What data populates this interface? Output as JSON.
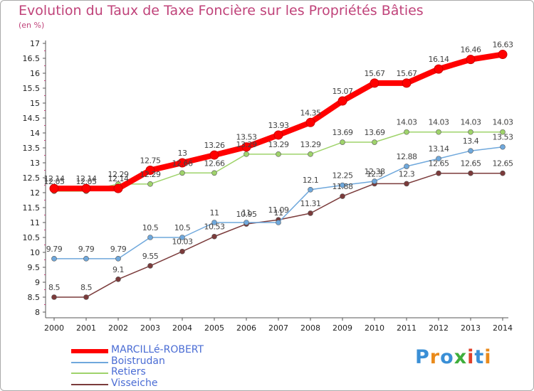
{
  "title": "Evolution du Taux de Taxe Foncière sur les Propriétés Bâties",
  "subtitle": "(en %)",
  "logo": {
    "letters": [
      "P",
      "r",
      "o",
      "x",
      "i",
      "t",
      "i"
    ],
    "colors": [
      "#3a8fd6",
      "#e98a1b",
      "#3a8fd6",
      "#3fae3c",
      "#e0402a",
      "#3a8fd6",
      "#e98a1b"
    ]
  },
  "chart_data": {
    "type": "line",
    "title": "Evolution du Taux de Taxe Foncière sur les Propriétés Bâties",
    "ylabel": "(en %)",
    "xlabel": "",
    "categories": [
      "2000",
      "2001",
      "2002",
      "2003",
      "2004",
      "2005",
      "2006",
      "2007",
      "2008",
      "2009",
      "2010",
      "2011",
      "2012",
      "2013",
      "2014"
    ],
    "y_ticks": [
      "8",
      "8.5",
      "9",
      "9.5",
      "10",
      "10.5",
      "11",
      "11.5",
      "12",
      "12.5",
      "13",
      "13.5",
      "14",
      "14.5",
      "15",
      "15.5",
      "16",
      "16.5",
      "17"
    ],
    "ylim": [
      8,
      17
    ],
    "series": [
      {
        "name": "MARCILLé-ROBERT",
        "color": "#ff0000",
        "values": [
          12.14,
          12.14,
          12.14,
          12.75,
          13,
          13.26,
          13.53,
          13.93,
          14.35,
          15.07,
          15.67,
          15.67,
          16.14,
          16.46,
          16.63
        ],
        "labels": [
          "12.14",
          "12.14",
          "12.14",
          "12.75",
          "13",
          "13.26",
          "13.53",
          "13.93",
          "14.35",
          "15.07",
          "15.67",
          "15.67",
          "16.14",
          "16.46",
          "16.63"
        ]
      },
      {
        "name": "Boistrudan",
        "color": "#6fa8dc",
        "values": [
          9.79,
          9.79,
          9.79,
          10.5,
          10.5,
          11,
          11,
          11,
          12.1,
          12.25,
          12.38,
          12.88,
          13.14,
          13.4,
          13.53
        ],
        "labels": [
          "9.79",
          "9.79",
          "9.79",
          "10.5",
          "10.5",
          "11",
          "11",
          "11",
          "12.1",
          "12.25",
          "12.38",
          "12.88",
          "13.14",
          "13.4",
          "13.53"
        ]
      },
      {
        "name": "Retiers",
        "color": "#9fd36b",
        "values": [
          12.05,
          12.05,
          12.29,
          12.29,
          12.66,
          12.66,
          13.29,
          13.29,
          13.29,
          13.69,
          13.69,
          14.03,
          14.03,
          14.03,
          14.03
        ],
        "labels": [
          "12.05",
          "12.05",
          "12.29",
          "12.29",
          "12.66",
          "12.66",
          "13.29",
          "13.29",
          "13.29",
          "13.69",
          "13.69",
          "14.03",
          "14.03",
          "14.03",
          "14.03"
        ]
      },
      {
        "name": "Visseiche",
        "color": "#7b3b3b",
        "values": [
          8.5,
          8.5,
          9.1,
          9.55,
          10.03,
          10.53,
          10.95,
          11.09,
          11.31,
          11.88,
          12.3,
          12.3,
          12.65,
          12.65,
          12.65
        ],
        "labels": [
          "8.5",
          "8.5",
          "9.1",
          "9.55",
          "10.03",
          "10.53",
          "10.95",
          "11.09",
          "11.31",
          "11.88",
          "12.3",
          "12.3",
          "12.65",
          "12.65",
          "12.65"
        ]
      }
    ],
    "legend_position": "bottom-left",
    "grid": false
  }
}
